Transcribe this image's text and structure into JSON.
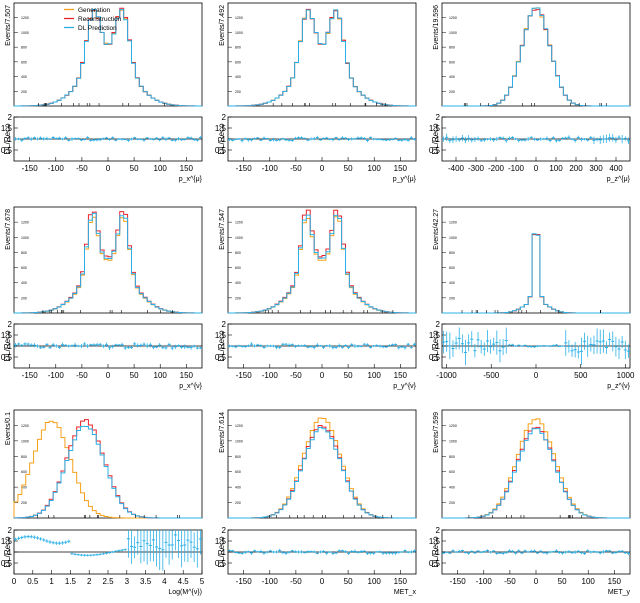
{
  "legend": {
    "entries": [
      {
        "label": "Generation",
        "color": "#f5a01a"
      },
      {
        "label": "Reconstruction",
        "color": "#e8232a"
      },
      {
        "label": "DL Prediction",
        "color": "#2ab0e8"
      }
    ]
  },
  "colors": {
    "generation": "#f5a01a",
    "reconstruction": "#e8232a",
    "dl": "#2ab0e8",
    "ratio_line": "#000000",
    "frame": "#000000"
  },
  "ratio_ylabel": "DL/Reco",
  "ratio_yticks": [
    "0.5",
    "1",
    "1.5",
    "2"
  ],
  "chart_data": [
    {
      "type": "histogram",
      "ylabel": "Events/7.507",
      "xlabel": "p_x^{μ}",
      "xticks": [
        "-150",
        "-100",
        "-50",
        "0",
        "50",
        "100",
        "150"
      ],
      "xlim": [
        -180,
        180
      ],
      "ylim": [
        0,
        1550
      ],
      "shape": {
        "kind": "double",
        "mu": 28,
        "sigma": 13,
        "wide": 45,
        "peak": 1370,
        "gen_scale": 1.0,
        "reco_scale": 1.0,
        "dl_scale": 1.0,
        "gen_shift": 0
      },
      "ratio_noise": 0.12,
      "ratio_profile": "flat"
    },
    {
      "type": "histogram",
      "ylabel": "Events/7.492",
      "xlabel": "p_y^{μ}",
      "xticks": [
        "-150",
        "-100",
        "-50",
        "0",
        "50",
        "100",
        "150"
      ],
      "xlim": [
        -180,
        180
      ],
      "ylim": [
        0,
        1450
      ],
      "shape": {
        "kind": "double",
        "mu": 28,
        "sigma": 13,
        "wide": 45,
        "peak": 1280,
        "gen_scale": 1.0,
        "reco_scale": 1.0,
        "dl_scale": 1.0,
        "gen_shift": 0
      },
      "ratio_noise": 0.12,
      "ratio_profile": "flat"
    },
    {
      "type": "histogram",
      "ylabel": "Events/19.596",
      "xlabel": "p_z^{μ}",
      "xticks": [
        "-400",
        "-300",
        "-200",
        "-100",
        "0",
        "100",
        "200",
        "300",
        "400"
      ],
      "xlim": [
        -470,
        470
      ],
      "ylim": [
        0,
        1700
      ],
      "shape": {
        "kind": "single",
        "mu": 0,
        "sigma": 70,
        "wide": 0,
        "peak": 1620,
        "gen_scale": 1.0,
        "reco_scale": 1.0,
        "dl_scale": 1.0,
        "gen_shift": 0
      },
      "ratio_noise": 0.14,
      "ratio_profile": "edges"
    },
    {
      "type": "histogram",
      "ylabel": "Events/7.678",
      "xlabel": "p_x^{ν}",
      "xticks": [
        "-150",
        "-100",
        "-50",
        "0",
        "50",
        "100",
        "150"
      ],
      "xlim": [
        -180,
        180
      ],
      "ylim": [
        0,
        1600
      ],
      "shape": {
        "kind": "double",
        "mu": 30,
        "sigma": 10,
        "wide": 45,
        "peak": 1450,
        "gen_scale": 0.97,
        "reco_scale": 1.04,
        "dl_scale": 1.0,
        "gen_shift": 0
      },
      "ratio_noise": 0.16,
      "ratio_profile": "flat"
    },
    {
      "type": "histogram",
      "ylabel": "Events/7.547",
      "xlabel": "p_y^{ν}",
      "xticks": [
        "-150",
        "-100",
        "-50",
        "0",
        "50",
        "100",
        "150"
      ],
      "xlim": [
        -180,
        180
      ],
      "ylim": [
        0,
        1500
      ],
      "shape": {
        "kind": "double",
        "mu": 30,
        "sigma": 10,
        "wide": 45,
        "peak": 1360,
        "gen_scale": 0.97,
        "reco_scale": 1.04,
        "dl_scale": 1.0,
        "gen_shift": 0
      },
      "ratio_noise": 0.14,
      "ratio_profile": "flat"
    },
    {
      "type": "histogram",
      "ylabel": "Events/42.27",
      "xlabel": "p_z^{ν}",
      "xticks": [
        "-1000",
        "-500",
        "0",
        "500",
        "1000"
      ],
      "xlim": [
        -1050,
        1050
      ],
      "ylim": [
        0,
        3600
      ],
      "shape": {
        "kind": "narrow",
        "mu": 0,
        "sigma": 28,
        "wide": 130,
        "peak": 3400,
        "gen_scale": 1.0,
        "reco_scale": 1.0,
        "dl_scale": 1.0,
        "gen_shift": 0
      },
      "ratio_noise": 0.35,
      "ratio_profile": "wideedges"
    },
    {
      "type": "histogram",
      "ylabel": "Events/0.1",
      "xlabel": "Log(M^{ν})",
      "xticks": [
        "0",
        "0.5",
        "1",
        "1.5",
        "2",
        "2.5",
        "3",
        "3.5",
        "4",
        "4.5",
        "5"
      ],
      "xlim": [
        0,
        5
      ],
      "ylim": [
        0,
        1550
      ],
      "shape": {
        "kind": "mass",
        "mu": 1.9,
        "sigma": 0.5,
        "wide": 0,
        "peak": 1400,
        "gen_scale": 1.0,
        "reco_scale": 1.0,
        "dl_scale": 0.95,
        "gen_shift": 0.9
      },
      "ratio_noise": 0.1,
      "ratio_profile": "mass"
    },
    {
      "type": "histogram",
      "ylabel": "Events/7.614",
      "xlabel": "MET_x",
      "xticks": [
        "-150",
        "-100",
        "-50",
        "0",
        "50",
        "100",
        "150"
      ],
      "xlim": [
        -180,
        180
      ],
      "ylim": [
        0,
        1550
      ],
      "shape": {
        "kind": "met",
        "mu": 0,
        "sigma": 36,
        "wide": 0,
        "peak": 1330,
        "gen_scale": 1.08,
        "reco_scale": 1.0,
        "dl_scale": 0.98,
        "gen_shift": 0
      },
      "ratio_noise": 0.12,
      "ratio_profile": "flat"
    },
    {
      "type": "histogram",
      "ylabel": "Events/7.599",
      "xlabel": "MET_y",
      "xticks": [
        "-150",
        "-100",
        "-50",
        "0",
        "50",
        "100",
        "150"
      ],
      "xlim": [
        -180,
        180
      ],
      "ylim": [
        0,
        1550
      ],
      "shape": {
        "kind": "met",
        "mu": 0,
        "sigma": 36,
        "wide": 0,
        "peak": 1300,
        "gen_scale": 1.1,
        "reco_scale": 1.0,
        "dl_scale": 0.98,
        "gen_shift": 0
      },
      "ratio_noise": 0.12,
      "ratio_profile": "flat"
    }
  ]
}
